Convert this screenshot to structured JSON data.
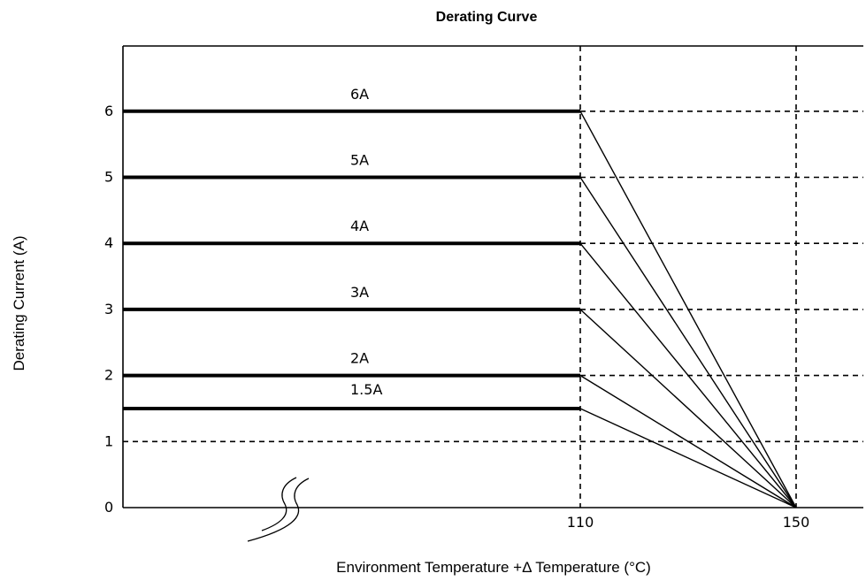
{
  "chart_data": {
    "type": "line",
    "title": "Derating Curve",
    "xlabel": "Environment Temperature +Δ Temperature (°C)",
    "ylabel": "Derating Current (A)",
    "ylim": [
      0,
      7
    ],
    "x_ticks": [
      {
        "value": 110,
        "label": "110"
      },
      {
        "value": 150,
        "label": "150"
      }
    ],
    "y_ticks": [
      {
        "value": 0,
        "label": "0"
      },
      {
        "value": 1,
        "label": "1"
      },
      {
        "value": 2,
        "label": "2"
      },
      {
        "value": 3,
        "label": "3"
      },
      {
        "value": 4,
        "label": "4"
      },
      {
        "value": 5,
        "label": "5"
      },
      {
        "value": 6,
        "label": "6"
      }
    ],
    "axis_break": true,
    "grid": "dashed",
    "series": [
      {
        "name": "6A",
        "flat_value": 6,
        "knee_x": 110,
        "zero_x": 150
      },
      {
        "name": "5A",
        "flat_value": 5,
        "knee_x": 110,
        "zero_x": 150
      },
      {
        "name": "4A",
        "flat_value": 4,
        "knee_x": 110,
        "zero_x": 150
      },
      {
        "name": "3A",
        "flat_value": 3,
        "knee_x": 110,
        "zero_x": 150
      },
      {
        "name": "2A",
        "flat_value": 2,
        "knee_x": 110,
        "zero_x": 150
      },
      {
        "name": "1.5A",
        "flat_value": 1.5,
        "knee_x": 110,
        "zero_x": 150
      }
    ]
  }
}
